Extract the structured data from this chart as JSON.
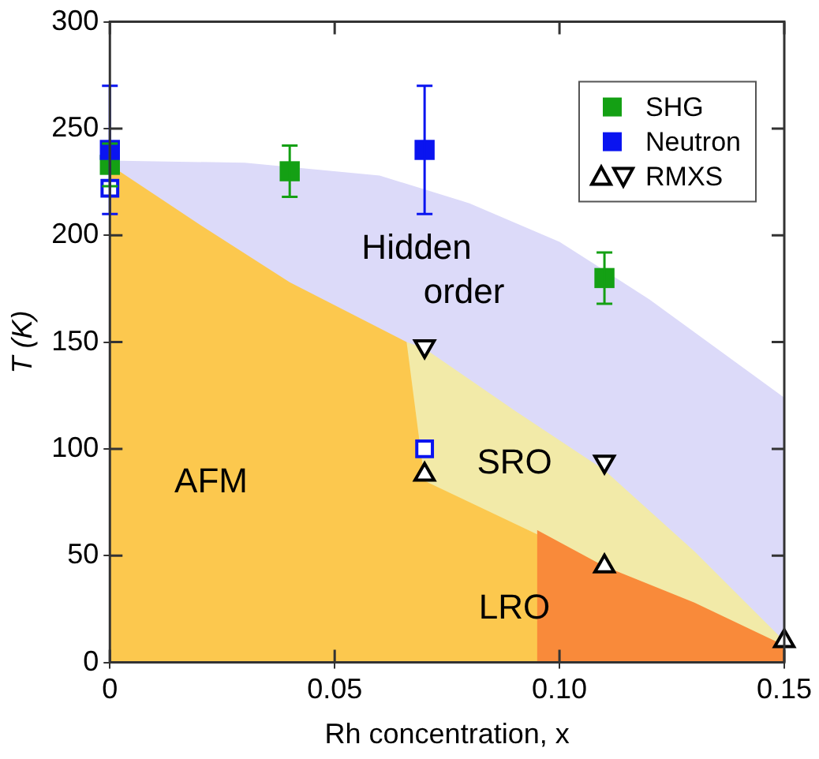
{
  "chart_data": {
    "type": "scatter",
    "xlabel": "Rh concentration, x",
    "ylabel": "T (K)",
    "xlim": [
      0,
      0.15
    ],
    "xticks": [
      0,
      0.05,
      {
        "value": 0.1,
        "label": "0.10"
      },
      0.15
    ],
    "ylim": [
      0,
      300
    ],
    "yticks": [
      0,
      50,
      100,
      150,
      200,
      250,
      300
    ],
    "legend": "top right",
    "grid": false,
    "series": [
      {
        "type": "area",
        "color": "#dcdaf9",
        "x": [
          0,
          0.03,
          0.06,
          0.08,
          0.1,
          0.12,
          0.15
        ],
        "values": [
          235,
          234,
          228,
          215,
          197,
          170,
          124
        ]
      },
      {
        "type": "area",
        "color": "#f2eaa8",
        "x": [
          0.066,
          0.07,
          0.09,
          0.11,
          0.13,
          0.15
        ],
        "values": [
          150,
          147,
          118,
          90,
          52,
          10
        ]
      },
      {
        "type": "area",
        "color": "#fcc84e",
        "x": [
          0,
          0.02,
          0.04,
          0.066,
          0.07,
          0.11,
          0.15
        ],
        "values": [
          233,
          205,
          178,
          150,
          85,
          45,
          8
        ]
      },
      {
        "type": "area",
        "color": "#f98a3a",
        "x": [
          0.095,
          0.11,
          0.13,
          0.15
        ],
        "values": [
          62,
          45,
          28,
          8
        ]
      },
      {
        "name": "SHG",
        "color": "#14a014",
        "marker": "square",
        "x": [
          0,
          0.04,
          0.11
        ],
        "values": [
          233,
          230,
          180
        ],
        "errors": [
          10,
          12,
          12
        ]
      },
      {
        "name": "Neutron",
        "color": "#0a14f0",
        "marker": "square",
        "x": [
          0,
          0.07
        ],
        "values": [
          240,
          240
        ],
        "errors": [
          30,
          30
        ]
      },
      {
        "color": "#0a14f0",
        "marker": "square",
        "x": [
          0,
          0.07
        ],
        "values": [
          222,
          100
        ]
      },
      {
        "name": "RMXS",
        "color": "#000000",
        "marker": "triangle",
        "x": [
          0.07,
          0.11,
          0.15
        ],
        "values": [
          88,
          45,
          10
        ]
      },
      {
        "color": "#000000",
        "marker": "triangle-down",
        "x": [
          0.07,
          0.11
        ],
        "values": [
          148,
          94
        ]
      }
    ],
    "annotations": [
      "Hidden order",
      "AFM",
      "SRO",
      "LRO"
    ]
  }
}
